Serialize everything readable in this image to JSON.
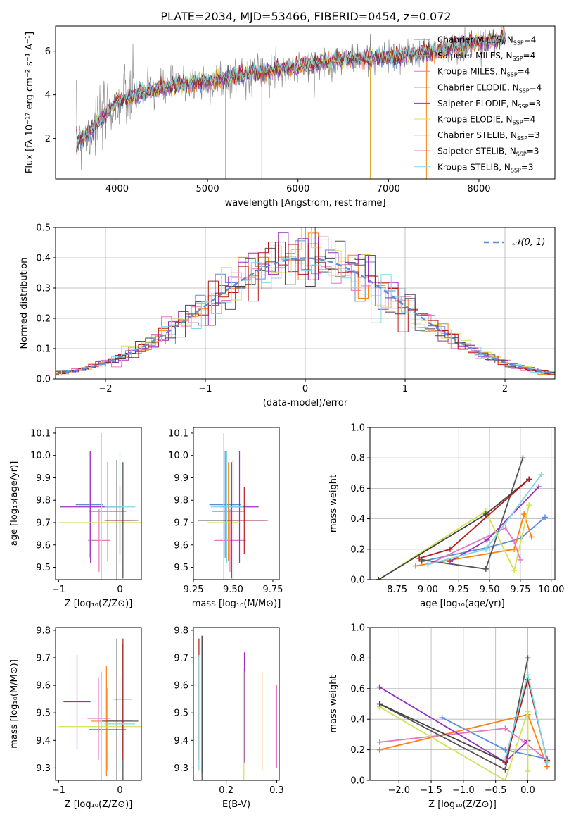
{
  "figure": {
    "title": "PLATE=2034, MJD=53466, FIBERID=0454, z=0.072"
  },
  "colors": {
    "model_colors": [
      "#5b8ddb",
      "#ff7f0e",
      "#e377c2",
      "#555555",
      "#9a2fbf",
      "#d4e157",
      "#444444",
      "#b31b1b",
      "#7fd8e6"
    ],
    "gaussian_line": "#5b8ddb",
    "data_spectrum": "#808080"
  },
  "chart_data": [
    {
      "id": "spectrum",
      "type": "line",
      "xlabel": "wavelength [Angstrom, rest frame]",
      "ylabel": "Flux [fλ 10⁻¹⁷ erg cm⁻² s⁻¹ A⁻¹]",
      "xlim": [
        3320,
        8840
      ],
      "ylim": [
        0.15,
        7.15
      ],
      "xticks": [
        4000,
        5000,
        6000,
        7000,
        8000
      ],
      "yticks": [
        2,
        4,
        6
      ],
      "grid": false,
      "legend_position": "right",
      "legend": [
        "Chabrier MILES, N_SSP=4",
        "Salpeter MILES, N_SSP=4",
        "Kroupa MILES, N_SSP=4",
        "Chabrier ELODIE, N_SSP=4",
        "Salpeter ELODIE, N_SSP=3",
        "Kroupa ELODIE, N_SSP=4",
        "Chabrier STELIB, N_SSP=3",
        "Salpeter STELIB, N_SSP=3",
        "Kroupa STELIB, N_SSP=3"
      ],
      "continuum": {
        "x": [
          3550,
          3700,
          3850,
          4000,
          4300,
          4600,
          5000,
          5500,
          6000,
          6500,
          7000,
          7500,
          8000,
          8300
        ],
        "y": [
          1.9,
          2.3,
          3.0,
          3.7,
          4.1,
          4.4,
          4.6,
          5.0,
          5.3,
          5.6,
          5.7,
          6.0,
          6.4,
          6.6
        ]
      },
      "data_start": 3550,
      "model_start": 3550,
      "model_end": 8300
    },
    {
      "id": "residual_hist",
      "type": "histogram",
      "xlabel": "(data-model)/error",
      "ylabel": "Normed distribution",
      "xlim": [
        -2.5,
        2.5
      ],
      "ylim": [
        0,
        0.5
      ],
      "xticks": [
        -2,
        -1,
        0,
        1,
        2
      ],
      "yticks": [
        0.0,
        0.1,
        0.2,
        0.3,
        0.4,
        0.5
      ],
      "grid": true,
      "legend_position": "top-right",
      "legend": [
        "𝒩(0, 1)"
      ],
      "bin_width": 0.1,
      "gaussian": {
        "mean": 0,
        "sigma": 1
      }
    },
    {
      "id": "age_vs_Z",
      "type": "errorbar",
      "xlabel": "Z [log₁₀(Z/Z⊙)]",
      "ylabel": "age  [log₁₀(age/yr)]",
      "xlim": [
        -1.05,
        0.35
      ],
      "ylim": [
        9.445,
        10.125
      ],
      "xticks": [
        -1,
        0
      ],
      "yticks": [
        9.5,
        9.6,
        9.7,
        9.8,
        9.9,
        10.0,
        10.1
      ],
      "points": [
        {
          "x": -0.5,
          "y": 9.78,
          "xerr": 0.22,
          "yerr": 0.24
        },
        {
          "x": -0.2,
          "y": 9.75,
          "xerr": 0.3,
          "yerr": 0.22
        },
        {
          "x": -0.34,
          "y": 9.62,
          "xerr": 0.18,
          "yerr": 0.14
        },
        {
          "x": -0.05,
          "y": 9.71,
          "xerr": 0.2,
          "yerr": 0.27
        },
        {
          "x": -0.48,
          "y": 9.77,
          "xerr": 0.5,
          "yerr": 0.25
        },
        {
          "x": -0.3,
          "y": 9.7,
          "xerr": 0.7,
          "yerr": 0.4
        },
        {
          "x": 0.05,
          "y": 9.71,
          "xerr": 0.25,
          "yerr": 0.26
        },
        {
          "x": 0.0,
          "y": 9.71,
          "xerr": 0.25,
          "yerr": 0.15
        },
        {
          "x": 0.0,
          "y": 9.77,
          "xerr": 0.25,
          "yerr": 0.25
        }
      ]
    },
    {
      "id": "age_vs_mass",
      "type": "errorbar",
      "xlabel": "mass [log₁₀(M/M⊙)]",
      "ylabel": "",
      "xlim": [
        9.25,
        9.79
      ],
      "ylim": [
        9.445,
        10.125
      ],
      "xticks": [
        9.25,
        9.5,
        9.75
      ],
      "yticks": [
        9.5,
        9.6,
        9.7,
        9.8,
        9.9,
        10.0,
        10.1
      ],
      "points": [
        {
          "x": 9.45,
          "y": 9.78,
          "xerr": 0.1,
          "yerr": 0.24
        },
        {
          "x": 9.47,
          "y": 9.75,
          "xerr": 0.1,
          "yerr": 0.22
        },
        {
          "x": 9.48,
          "y": 9.62,
          "xerr": 0.1,
          "yerr": 0.14
        },
        {
          "x": 9.5,
          "y": 9.71,
          "xerr": 0.22,
          "yerr": 0.27
        },
        {
          "x": 9.54,
          "y": 9.77,
          "xerr": 0.12,
          "yerr": 0.25
        },
        {
          "x": 9.44,
          "y": 9.7,
          "xerr": 0.1,
          "yerr": 0.4
        },
        {
          "x": 9.49,
          "y": 9.71,
          "xerr": 0.21,
          "yerr": 0.26
        },
        {
          "x": 9.57,
          "y": 9.71,
          "xerr": 0.14,
          "yerr": 0.15
        },
        {
          "x": 9.46,
          "y": 9.77,
          "xerr": 0.1,
          "yerr": 0.25
        }
      ]
    },
    {
      "id": "weight_vs_age",
      "type": "line",
      "xlabel": "age  [log₁₀(age/yr)]",
      "ylabel": "mass weight",
      "xlim": [
        8.53,
        10.03
      ],
      "ylim": [
        0,
        1
      ],
      "xticks": [
        8.75,
        9.0,
        9.25,
        9.5,
        9.75,
        10.0
      ],
      "yticks": [
        0.0,
        0.2,
        0.4,
        0.6,
        0.8,
        1.0
      ],
      "grid": true,
      "series": [
        {
          "x": [
            8.95,
            9.48,
            9.75,
            9.95
          ],
          "y": [
            0.12,
            0.21,
            0.27,
            0.41
          ]
        },
        {
          "x": [
            8.9,
            9.7,
            9.78,
            9.84
          ],
          "y": [
            0.09,
            0.2,
            0.43,
            0.28
          ]
        },
        {
          "x": [
            9.0,
            9.63,
            9.7,
            9.75
          ],
          "y": [
            0.1,
            0.34,
            0.25,
            0.13
          ]
        },
        {
          "x": [
            8.95,
            9.47,
            9.77
          ],
          "y": [
            0.13,
            0.07,
            0.8
          ]
        },
        {
          "x": [
            9.18,
            9.48,
            9.9
          ],
          "y": [
            0.12,
            0.26,
            0.61
          ]
        },
        {
          "x": [
            8.6,
            9.47,
            9.7,
            9.82
          ],
          "y": [
            0.0,
            0.45,
            0.06,
            0.49
          ]
        },
        {
          "x": [
            8.6,
            9.47,
            9.82
          ],
          "y": [
            0.0,
            0.43,
            0.66
          ]
        },
        {
          "x": [
            8.93,
            9.18,
            9.82
          ],
          "y": [
            0.14,
            0.2,
            0.66
          ]
        },
        {
          "x": [
            9.0,
            9.47,
            9.92
          ],
          "y": [
            0.1,
            0.2,
            0.69
          ]
        }
      ]
    },
    {
      "id": "mass_vs_Z",
      "type": "errorbar",
      "xlabel": "Z [log₁₀(Z/Z⊙)]",
      "ylabel": "mass [log₁₀(M/M⊙)]",
      "xlim": [
        -1.05,
        0.35
      ],
      "ylim": [
        9.255,
        9.81
      ],
      "xticks": [
        -1,
        0
      ],
      "yticks": [
        9.3,
        9.4,
        9.5,
        9.6,
        9.7,
        9.8
      ],
      "points": [
        {
          "x": -0.2,
          "y": 9.44,
          "xerr": 0.3,
          "yerr": 0.15
        },
        {
          "x": -0.22,
          "y": 9.47,
          "xerr": 0.25,
          "yerr": 0.2
        },
        {
          "x": -0.35,
          "y": 9.48,
          "xerr": 0.18,
          "yerr": 0.15
        },
        {
          "x": -0.05,
          "y": 9.47,
          "xerr": 0.25,
          "yerr": 0.3
        },
        {
          "x": -0.7,
          "y": 9.54,
          "xerr": 0.22,
          "yerr": 0.17
        },
        {
          "x": -0.3,
          "y": 9.45,
          "xerr": 0.7,
          "yerr": 0.2
        },
        {
          "x": 0.05,
          "y": 9.47,
          "xerr": 0.25,
          "yerr": 0.28
        },
        {
          "x": 0.05,
          "y": 9.55,
          "xerr": 0.15,
          "yerr": 0.22
        },
        {
          "x": 0.0,
          "y": 9.46,
          "xerr": 0.25,
          "yerr": 0.17
        }
      ]
    },
    {
      "id": "mass_vs_ebv",
      "type": "errorbar",
      "xlabel": "E(B-V)",
      "ylabel": "",
      "xlim": [
        0.135,
        0.305
      ],
      "ylim": [
        9.255,
        9.81
      ],
      "xticks": [
        0.2,
        0.3
      ],
      "yticks": [
        9.3,
        9.4,
        9.5,
        9.6,
        9.7,
        9.8
      ],
      "points": [
        {
          "x": 0.236,
          "y": 9.5,
          "yerr": 0.16
        },
        {
          "x": 0.271,
          "y": 9.47,
          "yerr": 0.18
        },
        {
          "x": 0.3,
          "y": 9.45,
          "yerr": 0.15
        },
        {
          "x": 0.152,
          "y": 9.53,
          "yerr": 0.25
        },
        {
          "x": 0.236,
          "y": 9.52,
          "yerr": 0.2
        },
        {
          "x": 0.235,
          "y": 9.45,
          "yerr": 0.2
        },
        {
          "x": 0.152,
          "y": 9.5,
          "yerr": 0.28
        },
        {
          "x": 0.146,
          "y": 9.55,
          "yerr": 0.22
        },
        {
          "x": 0.146,
          "y": 9.5,
          "yerr": 0.21
        }
      ]
    },
    {
      "id": "weight_vs_Z",
      "type": "line",
      "xlabel": "Z [log₁₀(Z/Z⊙)]",
      "ylabel": "mass weight",
      "xlim": [
        -2.45,
        0.42
      ],
      "ylim": [
        0,
        1
      ],
      "xticks": [
        -2.0,
        -1.5,
        -1.0,
        -0.5,
        0.0
      ],
      "yticks": [
        0.0,
        0.2,
        0.4,
        0.6,
        0.8,
        1.0
      ],
      "grid": true,
      "series": [
        {
          "x": [
            -1.33,
            -0.35,
            0.3
          ],
          "y": [
            0.41,
            0.2,
            0.14
          ]
        },
        {
          "x": [
            -2.3,
            0.0,
            0.3
          ],
          "y": [
            0.2,
            0.43,
            0.09
          ]
        },
        {
          "x": [
            -2.3,
            -0.35,
            -0.05,
            0.3
          ],
          "y": [
            0.25,
            0.34,
            0.25,
            0.13
          ]
        },
        {
          "x": [
            -2.3,
            -0.35,
            0.0
          ],
          "y": [
            0.5,
            0.07,
            0.8
          ]
        },
        {
          "x": [
            -2.3,
            -0.35,
            0.0
          ],
          "y": [
            0.61,
            0.12,
            0.26
          ]
        },
        {
          "x": [
            -2.3,
            -0.35,
            0.0,
            0.0
          ],
          "y": [
            0.48,
            0.0,
            0.45,
            0.06
          ]
        },
        {
          "x": [
            -2.3,
            -0.35,
            0.0
          ],
          "y": [
            0.5,
            0.12,
            0.66
          ]
        },
        {
          "x": [
            -0.35,
            0.0,
            0.3
          ],
          "y": [
            0.12,
            0.66,
            0.13
          ]
        },
        {
          "x": [
            -0.35,
            0.0,
            0.3
          ],
          "y": [
            0.14,
            0.69,
            0.12
          ]
        }
      ]
    }
  ]
}
